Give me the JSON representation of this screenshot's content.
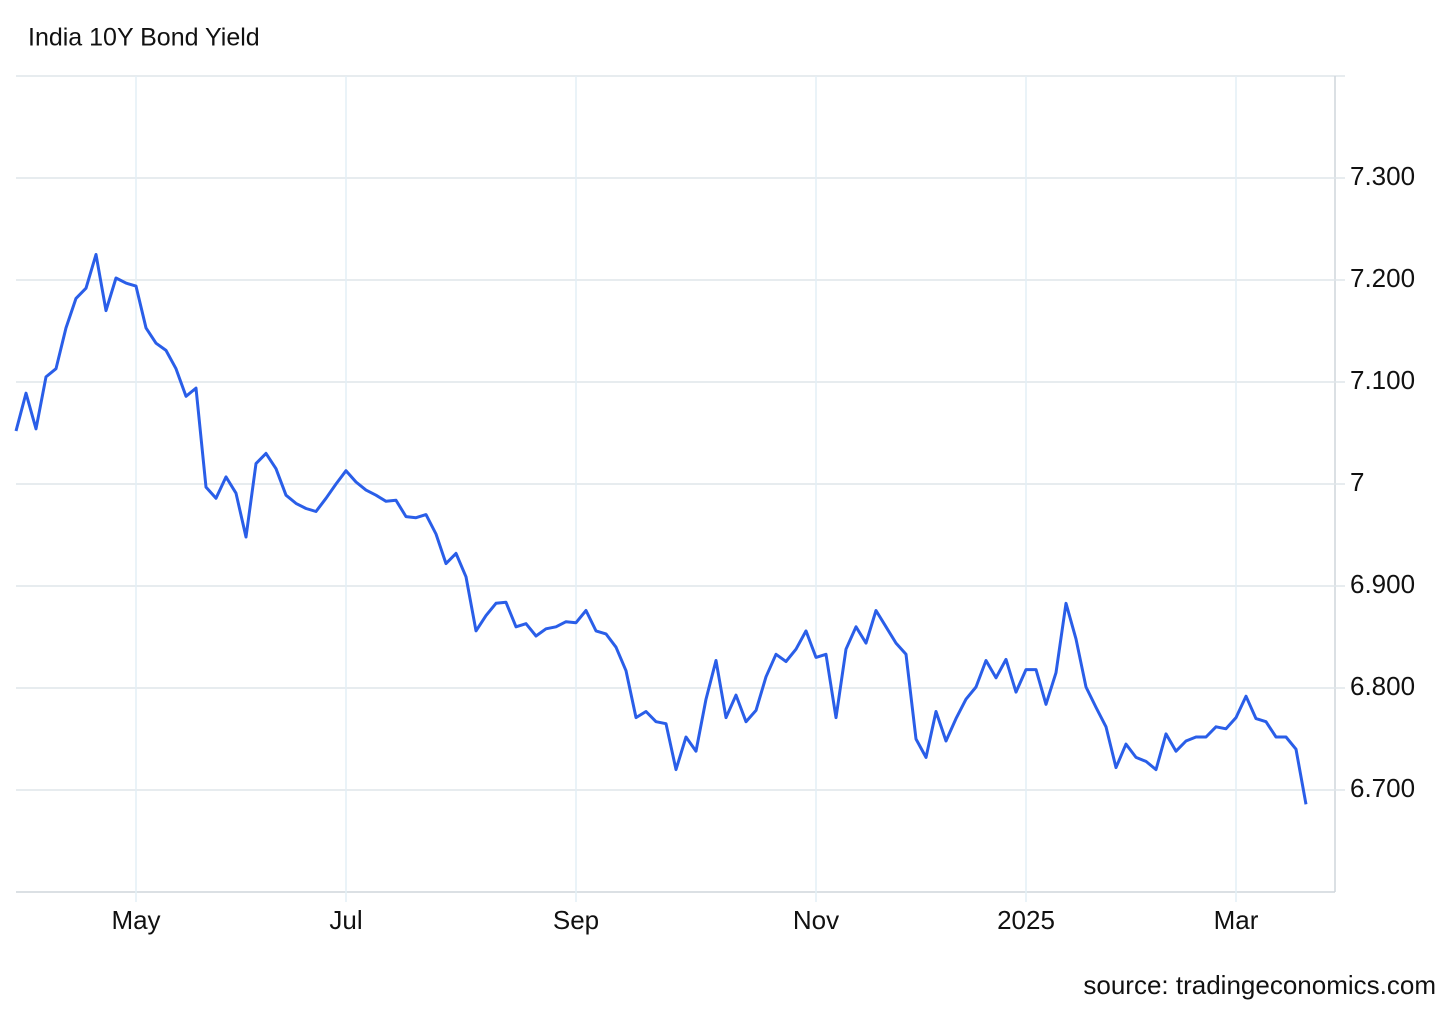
{
  "chart_data": {
    "type": "line",
    "title": "India 10Y Bond Yield",
    "source": "source: tradingeconomics.com",
    "categories": [
      null,
      null,
      null,
      null,
      null,
      null,
      null,
      null,
      null,
      null,
      null,
      null,
      "May",
      null,
      null,
      null,
      null,
      null,
      null,
      null,
      null,
      null,
      null,
      null,
      null,
      null,
      null,
      null,
      null,
      null,
      null,
      null,
      null,
      "Jul",
      null,
      null,
      null,
      null,
      null,
      null,
      null,
      null,
      null,
      null,
      null,
      null,
      null,
      null,
      null,
      null,
      null,
      null,
      null,
      null,
      null,
      null,
      "Sep",
      null,
      null,
      null,
      null,
      null,
      null,
      null,
      null,
      null,
      null,
      null,
      null,
      null,
      null,
      null,
      null,
      null,
      null,
      null,
      null,
      null,
      null,
      null,
      "Nov",
      null,
      null,
      null,
      null,
      null,
      null,
      null,
      null,
      null,
      null,
      null,
      null,
      null,
      null,
      null,
      null,
      null,
      null,
      null,
      null,
      "2025",
      null,
      null,
      null,
      null,
      null,
      null,
      null,
      null,
      null,
      null,
      null,
      null,
      null,
      null,
      null,
      null,
      null,
      null,
      null,
      null,
      "Mar",
      null,
      null,
      null,
      null,
      null,
      null,
      null
    ],
    "series": [
      {
        "name": "India 10Y Bond Yield",
        "color": "#2a5ee8",
        "values": [
          7.052,
          7.089,
          7.054,
          7.105,
          7.113,
          7.153,
          7.182,
          7.192,
          7.225,
          7.17,
          7.202,
          7.197,
          7.194,
          7.153,
          7.138,
          7.131,
          7.113,
          7.086,
          7.094,
          6.997,
          6.986,
          7.007,
          6.991,
          6.948,
          7.02,
          7.03,
          7.015,
          6.989,
          6.981,
          6.976,
          6.973,
          6.986,
          7.0,
          7.013,
          7.002,
          6.994,
          6.989,
          6.983,
          6.984,
          6.968,
          6.967,
          6.97,
          6.951,
          6.922,
          6.932,
          6.909,
          6.856,
          6.871,
          6.883,
          6.884,
          6.86,
          6.863,
          6.851,
          6.858,
          6.86,
          6.865,
          6.864,
          6.876,
          6.856,
          6.853,
          6.84,
          6.817,
          6.771,
          6.777,
          6.767,
          6.765,
          6.72,
          6.752,
          6.738,
          6.789,
          6.827,
          6.771,
          6.793,
          6.767,
          6.778,
          6.811,
          6.833,
          6.826,
          6.838,
          6.856,
          6.83,
          6.833,
          6.771,
          6.838,
          6.86,
          6.844,
          6.876,
          6.86,
          6.844,
          6.833,
          6.75,
          6.732,
          6.777,
          6.748,
          6.77,
          6.789,
          6.801,
          6.827,
          6.81,
          6.828,
          6.796,
          6.818,
          6.818,
          6.784,
          6.815,
          6.883,
          6.848,
          6.801,
          6.781,
          6.762,
          6.722,
          6.745,
          6.732,
          6.728,
          6.72,
          6.755,
          6.738,
          6.748,
          6.752,
          6.752,
          6.762,
          6.76,
          6.771,
          6.792,
          6.77,
          6.767,
          6.752,
          6.752,
          6.74,
          6.686
        ]
      }
    ],
    "ylim": [
      6.6,
      7.4
    ],
    "yticks": [
      {
        "value": 6.7,
        "label": "6.700"
      },
      {
        "value": 6.8,
        "label": "6.800"
      },
      {
        "value": 6.9,
        "label": "6.900"
      },
      7,
      {
        "value": 7.1,
        "label": "7.100"
      },
      {
        "value": 7.2,
        "label": "7.200"
      },
      {
        "value": 7.3,
        "label": "7.300"
      }
    ],
    "grid": true
  }
}
